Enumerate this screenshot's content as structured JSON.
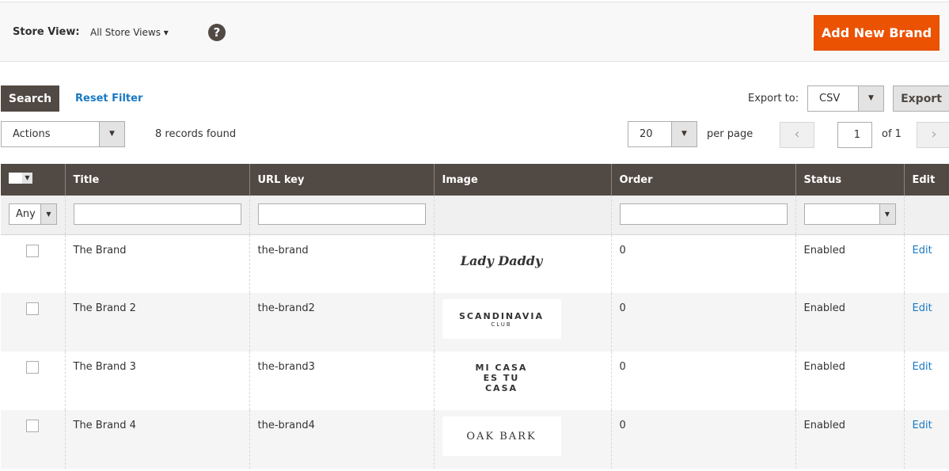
{
  "store_view": {
    "label": "Store View:",
    "value": "All Store Views",
    "help": "?"
  },
  "add_button": "Add New Brand",
  "search_button": "Search",
  "reset_filter": "Reset Filter",
  "export": {
    "label": "Export to:",
    "format": "CSV",
    "button": "Export"
  },
  "actions": "Actions",
  "records": "8 records found",
  "per_page": {
    "value": "20",
    "label": "per page"
  },
  "page": {
    "current": "1",
    "of": "of 1"
  },
  "columns": [
    "Title",
    "URL key",
    "Image",
    "Order",
    "Status",
    "Edit"
  ],
  "filter": {
    "any": "Any"
  },
  "rows": [
    {
      "title": "The Brand",
      "url": "the-brand",
      "logo": "Lady Daddy",
      "logo_sub": "",
      "order": "0",
      "status": "Enabled",
      "edit": "Edit"
    },
    {
      "title": "The Brand 2",
      "url": "the-brand2",
      "logo": "SCANDINAVIA",
      "logo_sub": "CLUB",
      "order": "0",
      "status": "Enabled",
      "edit": "Edit"
    },
    {
      "title": "The Brand 3",
      "url": "the-brand3",
      "logo": "MI CASA ES TU CASA",
      "logo_sub": "",
      "order": "0",
      "status": "Enabled",
      "edit": "Edit"
    },
    {
      "title": "The Brand 4",
      "url": "the-brand4",
      "logo": "OAK BARK",
      "logo_sub": "",
      "order": "0",
      "status": "Enabled",
      "edit": "Edit"
    }
  ],
  "colors": {
    "accent": "#eb5202",
    "header": "#514943",
    "link": "#1979c3"
  }
}
